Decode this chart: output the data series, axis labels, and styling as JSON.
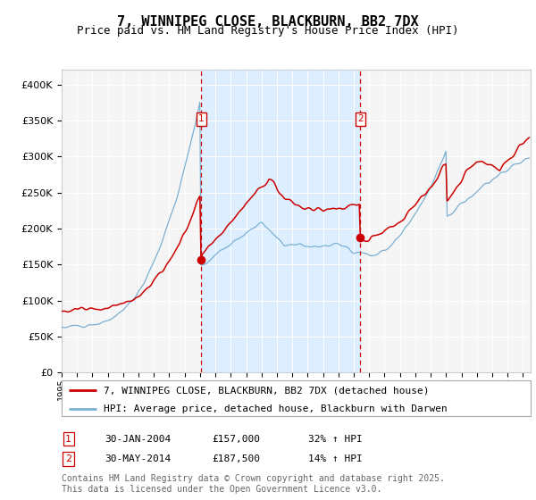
{
  "title": "7, WINNIPEG CLOSE, BLACKBURN, BB2 7DX",
  "subtitle": "Price paid vs. HM Land Registry's House Price Index (HPI)",
  "legend_line1": "7, WINNIPEG CLOSE, BLACKBURN, BB2 7DX (detached house)",
  "legend_line2": "HPI: Average price, detached house, Blackburn with Darwen",
  "marker1_date": "30-JAN-2004",
  "marker1_price": 157000,
  "marker1_hpi": "32% ↑ HPI",
  "marker2_date": "30-MAY-2014",
  "marker2_price": 187500,
  "marker2_hpi": "14% ↑ HPI",
  "footnote1": "Contains HM Land Registry data © Crown copyright and database right 2025.",
  "footnote2": "This data is licensed under the Open Government Licence v3.0.",
  "red_color": "#cc0000",
  "blue_color": "#7ab0d4",
  "bg_color": "#ddeeff",
  "grid_color": "#e8e8e8",
  "marker_dot_color": "#cc0000",
  "dashed_line_color": "#cc0000",
  "ylim": [
    0,
    420000
  ],
  "yticks": [
    0,
    50000,
    100000,
    150000,
    200000,
    250000,
    300000,
    350000,
    400000
  ],
  "xlim_start": 1995,
  "xlim_end": 2025.5,
  "marker1_x": 2004.08,
  "marker2_x": 2014.42,
  "title_fontsize": 11,
  "subtitle_fontsize": 9,
  "axis_fontsize": 8,
  "legend_fontsize": 8,
  "annotation_fontsize": 8,
  "footnote_fontsize": 7
}
